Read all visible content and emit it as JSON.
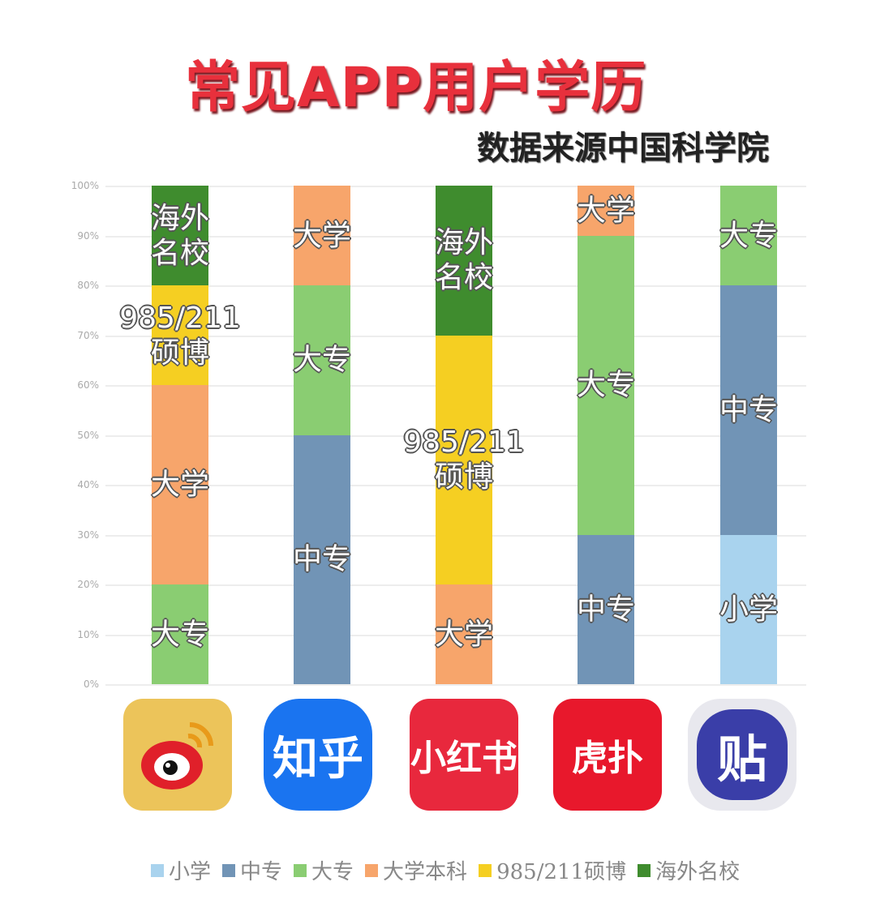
{
  "header": {
    "title": "常见APP用户学历",
    "subtitle": "数据来源中国科学院"
  },
  "colors": {
    "小学": "#a9d3ee",
    "中专": "#7194b6",
    "大专": "#8acd72",
    "大学本科": "#f7a56b",
    "985/211硕博": "#f5cf22",
    "海外名校": "#3f8c2e"
  },
  "legend": [
    {
      "label": "小学",
      "color": "#a9d3ee"
    },
    {
      "label": "中专",
      "color": "#7194b6"
    },
    {
      "label": "大专",
      "color": "#8acd72"
    },
    {
      "label": "大学本科",
      "color": "#f7a56b"
    },
    {
      "label": "985/211硕博",
      "color": "#f5cf22"
    },
    {
      "label": "海外名校",
      "color": "#3f8c2e"
    }
  ],
  "apps": [
    {
      "name": "微博",
      "icon_text": "",
      "bg": "#ecc45a"
    },
    {
      "name": "知乎",
      "icon_text": "知乎",
      "bg": "#1a74f0"
    },
    {
      "name": "小红书",
      "icon_text": "小红书",
      "bg": "#e8283d"
    },
    {
      "name": "虎扑",
      "icon_text": "虎扑",
      "bg": "#e8182c"
    },
    {
      "name": "贴吧",
      "icon_text": "贴",
      "bg": "#3a3ea8"
    }
  ],
  "chart_data": {
    "type": "bar",
    "stacked": true,
    "title": "常见APP用户学历",
    "subtitle": "数据来源中国科学院",
    "categories": [
      "微博",
      "知乎",
      "小红书",
      "虎扑",
      "贴吧"
    ],
    "yticks": [
      "0%",
      "10%",
      "20%",
      "30%",
      "40%",
      "50%",
      "60%",
      "70%",
      "80%",
      "90%",
      "100%"
    ],
    "ylim": [
      0,
      100
    ],
    "grid": true,
    "legend_position": "bottom",
    "series": [
      {
        "name": "小学",
        "values": [
          0,
          0,
          0,
          0,
          30
        ]
      },
      {
        "name": "中专",
        "values": [
          0,
          50,
          0,
          30,
          50
        ]
      },
      {
        "name": "大专",
        "values": [
          20,
          30,
          0,
          60,
          20
        ]
      },
      {
        "name": "大学本科",
        "values": [
          40,
          20,
          20,
          10,
          0
        ]
      },
      {
        "name": "985/211硕博",
        "values": [
          20,
          0,
          50,
          0,
          0
        ]
      },
      {
        "name": "海外名校",
        "values": [
          20,
          0,
          30,
          0,
          0
        ]
      }
    ],
    "segment_labels": [
      [
        {
          "text": "大专",
          "series": "大专",
          "from": 0,
          "to": 20
        },
        {
          "text": "大学",
          "series": "大学本科",
          "from": 20,
          "to": 60
        },
        {
          "text": "985/211\n硕博",
          "series": "985/211硕博",
          "from": 60,
          "to": 80
        },
        {
          "text": "海外\n名校",
          "series": "海外名校",
          "from": 80,
          "to": 100
        }
      ],
      [
        {
          "text": "中专",
          "series": "中专",
          "from": 0,
          "to": 50
        },
        {
          "text": "大专",
          "series": "大专",
          "from": 50,
          "to": 80
        },
        {
          "text": "大学",
          "series": "大学本科",
          "from": 80,
          "to": 100
        }
      ],
      [
        {
          "text": "大学",
          "series": "大学本科",
          "from": 0,
          "to": 20
        },
        {
          "text": "985/211\n硕博",
          "series": "985/211硕博",
          "from": 20,
          "to": 70
        },
        {
          "text": "海外\n名校",
          "series": "海外名校",
          "from": 70,
          "to": 100
        }
      ],
      [
        {
          "text": "中专",
          "series": "中专",
          "from": 0,
          "to": 30
        },
        {
          "text": "大专",
          "series": "大专",
          "from": 30,
          "to": 90
        },
        {
          "text": "大学",
          "series": "大学本科",
          "from": 90,
          "to": 100
        }
      ],
      [
        {
          "text": "小学",
          "series": "小学",
          "from": 0,
          "to": 30
        },
        {
          "text": "中专",
          "series": "中专",
          "from": 30,
          "to": 80
        },
        {
          "text": "大专",
          "series": "大专",
          "from": 80,
          "to": 100
        }
      ]
    ]
  }
}
